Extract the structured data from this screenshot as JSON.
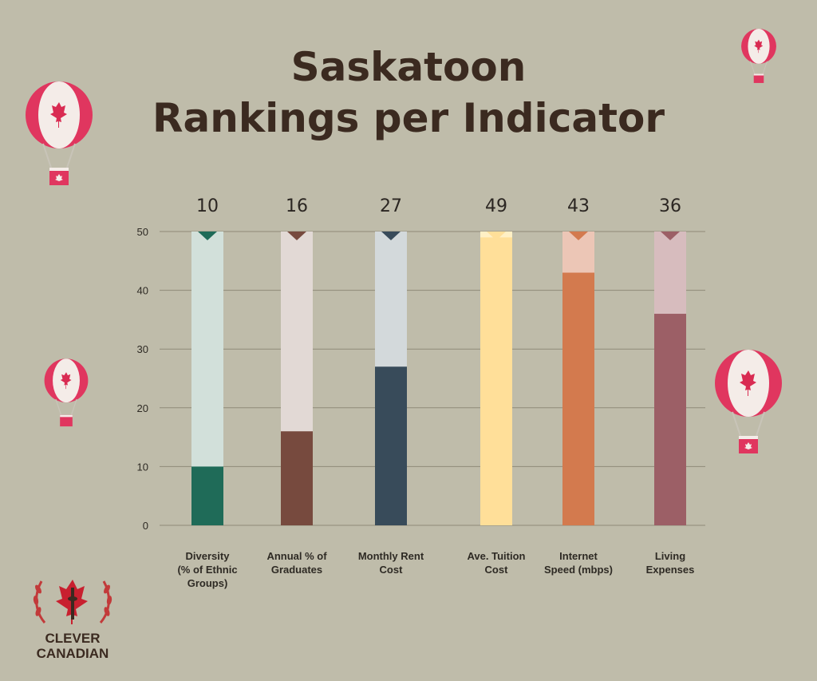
{
  "title": {
    "line1": "Saskatoon",
    "line2": "Rankings per Indicator"
  },
  "logo": {
    "line1": "CLEVER",
    "line2": "CANADIAN"
  },
  "colors": {
    "background": "#bfbcaa",
    "gridline": "#8f8a78",
    "balloon_red": "#e0365f",
    "balloon_white": "#f4ece8"
  },
  "chart_data": {
    "type": "bar",
    "ylim": [
      0,
      50
    ],
    "yticks": [
      0,
      10,
      20,
      30,
      40,
      50
    ],
    "grid": true,
    "categories": [
      "Diversity (% of Ethnic Groups)",
      "Annual % of Graduates",
      "Monthly Rent Cost",
      "Ave. Tuition Cost",
      "Internet Speed (mbps)",
      "Living Expenses"
    ],
    "category_lines": [
      [
        "Diversity",
        "(% of Ethnic",
        "Groups)"
      ],
      [
        "Annual % of",
        "Graduates"
      ],
      [
        "Monthly Rent",
        "Cost"
      ],
      [
        "Ave. Tuition",
        "Cost"
      ],
      [
        "Internet",
        "Speed (mbps)"
      ],
      [
        "Living",
        "Expenses"
      ]
    ],
    "values": [
      10,
      16,
      27,
      49,
      43,
      36
    ],
    "bar_colors": [
      "#1f6b58",
      "#774a3e",
      "#384b5a",
      "#ffdf99",
      "#d37a4e",
      "#9c5f66"
    ],
    "track_colors": [
      "#d2e0da",
      "#e2d9d5",
      "#d3d9db",
      "#fff0c5",
      "#ecc6b6",
      "#d7bcbe"
    ]
  }
}
